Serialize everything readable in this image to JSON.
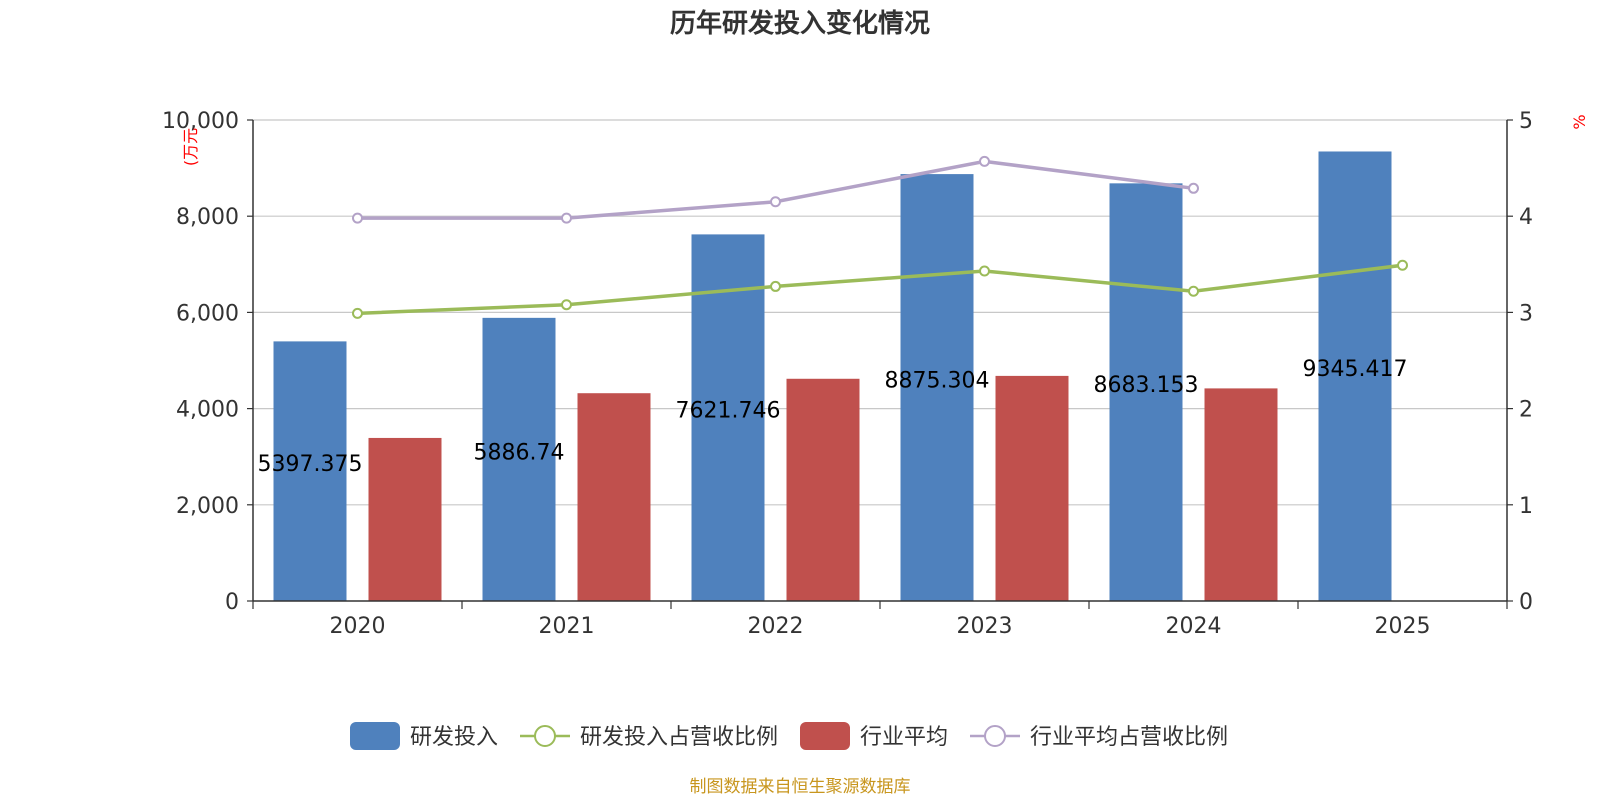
{
  "chart_data": {
    "type": "bar",
    "title": "历年研发投入变化情况",
    "categories": [
      "2020",
      "2021",
      "2022",
      "2023",
      "2024",
      "2025"
    ],
    "y_left": {
      "unit": "(万元",
      "ylim": [
        0,
        10000
      ],
      "ticks": [
        "0",
        "2,000",
        "4,000",
        "6,000",
        "8,000",
        "10,000"
      ],
      "tick_values": [
        0,
        2000,
        4000,
        6000,
        8000,
        10000
      ]
    },
    "y_right": {
      "unit": "%",
      "ylim": [
        0,
        5
      ],
      "ticks": [
        "0",
        "1",
        "2",
        "3",
        "4",
        "5"
      ],
      "tick_values": [
        0,
        1,
        2,
        3,
        4,
        5
      ]
    },
    "series": [
      {
        "name": "研发投入",
        "type": "bar",
        "axis": "left",
        "color": "#4f81bd",
        "values": [
          5397.375,
          5886.74,
          7621.746,
          8875.304,
          8683.153,
          9345.417
        ],
        "labels": [
          "5397.375",
          "5886.74",
          "7621.746",
          "8875.304",
          "8683.153",
          "9345.417"
        ]
      },
      {
        "name": "研发投入占营收比例",
        "type": "line",
        "axis": "right",
        "color": "#9bbb59",
        "values": [
          2.99,
          3.08,
          3.27,
          3.43,
          3.22,
          3.49
        ]
      },
      {
        "name": "行业平均",
        "type": "bar",
        "axis": "left",
        "color": "#c0504d",
        "values": [
          3390,
          4320,
          4620,
          4680,
          4420,
          null
        ]
      },
      {
        "name": "行业平均占营收比例",
        "type": "line",
        "axis": "right",
        "color": "#b3a2c7",
        "values": [
          3.98,
          3.98,
          4.15,
          4.57,
          4.29,
          null
        ]
      }
    ],
    "grid": true,
    "legend": "bottom-center",
    "source": "制图数据来自恒生聚源数据库"
  }
}
